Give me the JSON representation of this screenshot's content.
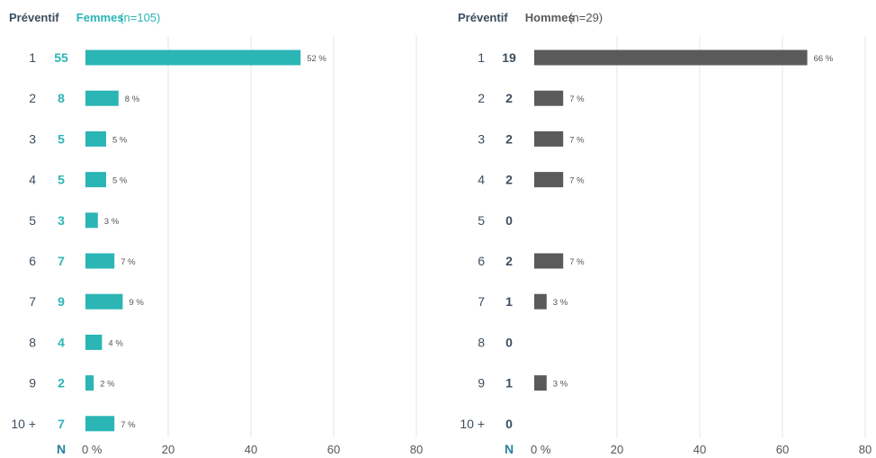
{
  "colors": {
    "femmes": "#2bb5b5",
    "hommes": "#5a5a5a",
    "category_text": "#3d4e5e",
    "grid": "#e6e6e6",
    "axis_text": "#555555",
    "n_label": "#2a7e9e"
  },
  "chart_data": [
    {
      "type": "bar",
      "orientation": "horizontal",
      "header_label": "Préventif",
      "group_label": "Femmes",
      "n_text": "(n=105)",
      "color_key": "femmes",
      "n_axis_label": "N",
      "categories": [
        "1",
        "2",
        "3",
        "4",
        "5",
        "6",
        "7",
        "8",
        "9",
        "10 +"
      ],
      "counts": [
        "55",
        "8",
        "5",
        "5",
        "3",
        "7",
        "9",
        "4",
        "2",
        "7"
      ],
      "values": [
        52,
        8,
        5,
        5,
        3,
        7,
        9,
        4,
        2,
        7
      ],
      "value_labels": [
        "52 %",
        "8 %",
        "5 %",
        "5 %",
        "3 %",
        "7 %",
        "9 %",
        "4 %",
        "2 %",
        "7 %"
      ],
      "xlim": [
        0,
        80
      ],
      "xticks": [
        "0 %",
        "20",
        "40",
        "60",
        "80"
      ],
      "grid": true
    },
    {
      "type": "bar",
      "orientation": "horizontal",
      "header_label": "Préventif",
      "group_label": "Hommes",
      "n_text": "(n=29)",
      "color_key": "hommes",
      "n_axis_label": "N",
      "categories": [
        "1",
        "2",
        "3",
        "4",
        "5",
        "6",
        "7",
        "8",
        "9",
        "10 +"
      ],
      "counts": [
        "19",
        "2",
        "2",
        "2",
        "0",
        "2",
        "1",
        "0",
        "1",
        "0"
      ],
      "values": [
        66,
        7,
        7,
        7,
        0,
        7,
        3,
        0,
        3,
        0
      ],
      "value_labels": [
        "66 %",
        "7 %",
        "7 %",
        "7 %",
        "",
        "7 %",
        "3 %",
        "",
        "3 %",
        ""
      ],
      "xlim": [
        0,
        80
      ],
      "xticks": [
        "0 %",
        "20",
        "40",
        "60",
        "80"
      ],
      "grid": true
    }
  ]
}
